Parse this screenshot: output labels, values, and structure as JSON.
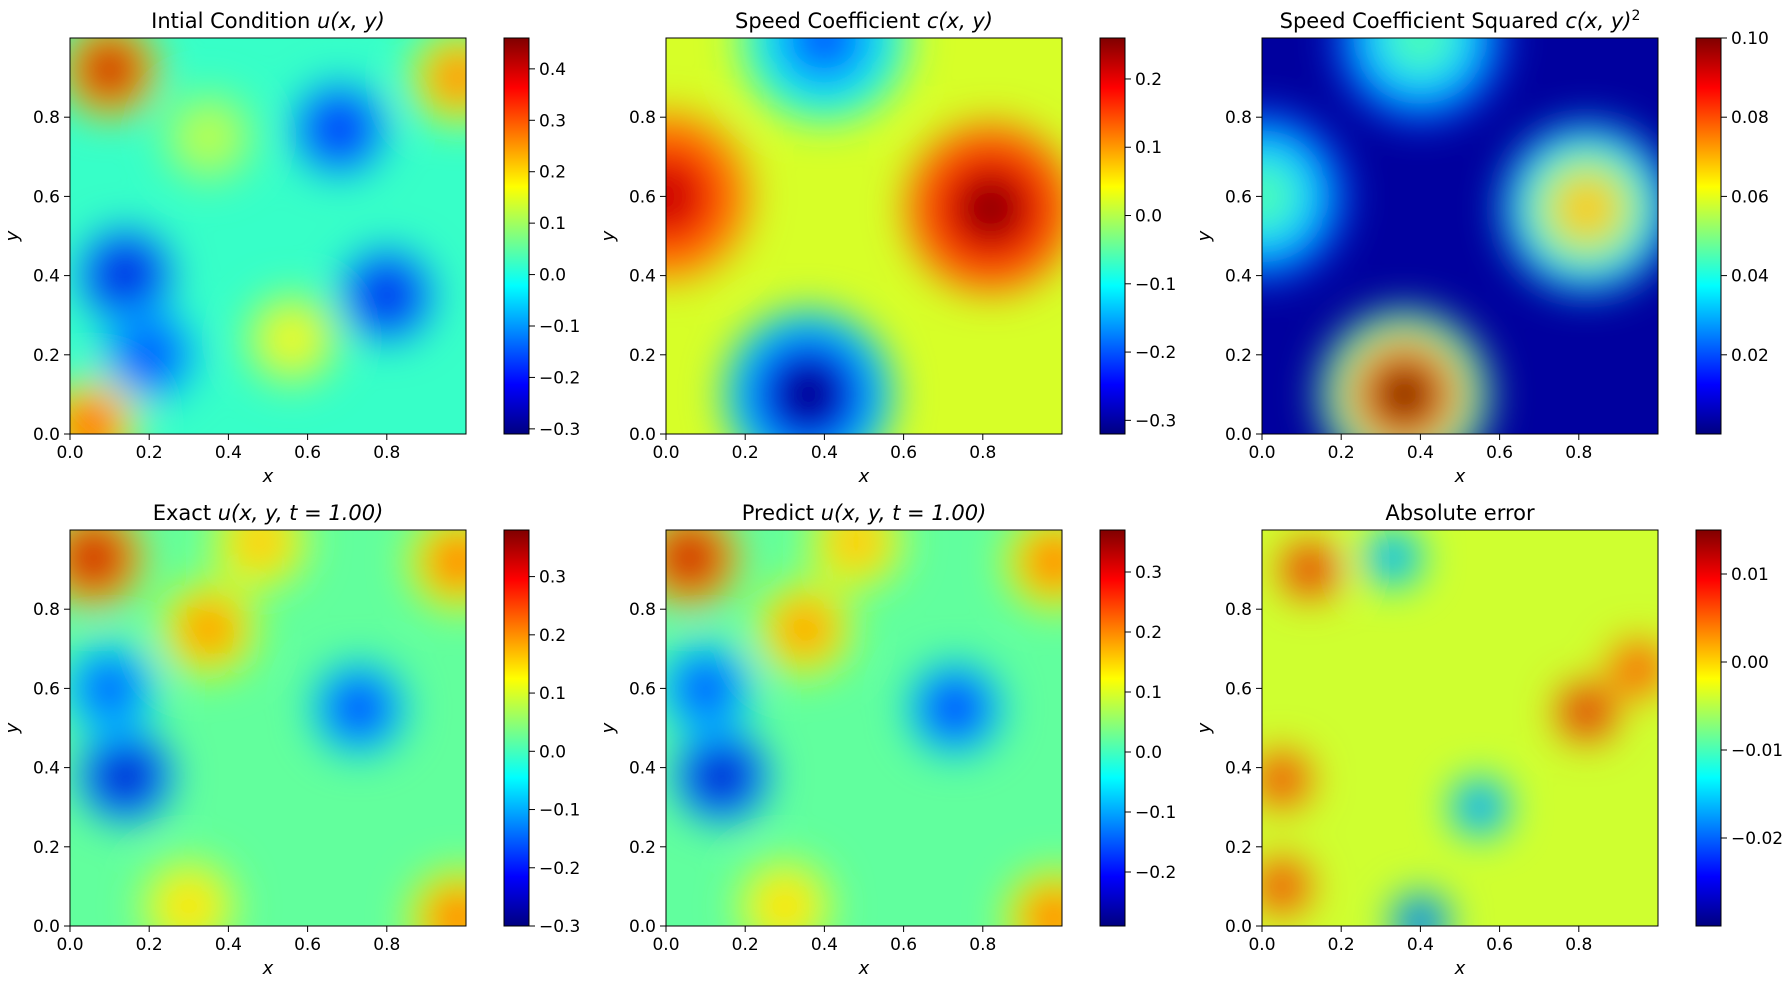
{
  "figure": {
    "panels": [
      {
        "title_prefix": "Intial Condition ",
        "title_math": "u(x, y)",
        "title_sup": "",
        "xlabel": "x",
        "ylabel": "y",
        "xticks": [
          "0.0",
          "0.2",
          "0.4",
          "0.6",
          "0.8"
        ],
        "yticks": [
          "0.0",
          "0.2",
          "0.4",
          "0.6",
          "0.8"
        ],
        "cbar_ticks": [
          "0.4",
          "0.3",
          "0.2",
          "0.1",
          "0.0",
          "−0.1",
          "−0.2",
          "−0.3"
        ]
      },
      {
        "title_prefix": "Speed Coefficient ",
        "title_math": "c(x, y)",
        "title_sup": "",
        "xlabel": "x",
        "ylabel": "y",
        "xticks": [
          "0.0",
          "0.2",
          "0.4",
          "0.6",
          "0.8"
        ],
        "yticks": [
          "0.0",
          "0.2",
          "0.4",
          "0.6",
          "0.8"
        ],
        "cbar_ticks": [
          "0.2",
          "0.1",
          "0.0",
          "−0.1",
          "−0.2",
          "−0.3"
        ]
      },
      {
        "title_prefix": "Speed Coefficient Squared ",
        "title_math": "c(x, y)",
        "title_sup": "2",
        "xlabel": "x",
        "ylabel": "y",
        "xticks": [
          "0.0",
          "0.2",
          "0.4",
          "0.6",
          "0.8"
        ],
        "yticks": [
          "0.0",
          "0.2",
          "0.4",
          "0.6",
          "0.8"
        ],
        "cbar_ticks": [
          "0.10",
          "0.08",
          "0.06",
          "0.04",
          "0.02"
        ]
      },
      {
        "title_prefix": "Exact ",
        "title_math": "u(x, y, t = 1.00)",
        "title_sup": "",
        "xlabel": "x",
        "ylabel": "y",
        "xticks": [
          "0.0",
          "0.2",
          "0.4",
          "0.6",
          "0.8"
        ],
        "yticks": [
          "0.0",
          "0.2",
          "0.4",
          "0.6",
          "0.8"
        ],
        "cbar_ticks": [
          "0.3",
          "0.2",
          "0.1",
          "0.0",
          "−0.1",
          "−0.2",
          "−0.3"
        ]
      },
      {
        "title_prefix": "Predict ",
        "title_math": "u(x, y, t = 1.00)",
        "title_sup": "",
        "xlabel": "x",
        "ylabel": "y",
        "xticks": [
          "0.0",
          "0.2",
          "0.4",
          "0.6",
          "0.8"
        ],
        "yticks": [
          "0.0",
          "0.2",
          "0.4",
          "0.6",
          "0.8"
        ],
        "cbar_ticks": [
          "0.3",
          "0.2",
          "0.1",
          "0.0",
          "−0.1",
          "−0.2"
        ]
      },
      {
        "title_prefix": "Absolute error",
        "title_math": "",
        "title_sup": "",
        "xlabel": "x",
        "ylabel": "y",
        "xticks": [
          "0.0",
          "0.2",
          "0.4",
          "0.6",
          "0.8"
        ],
        "yticks": [
          "0.0",
          "0.2",
          "0.4",
          "0.6",
          "0.8"
        ],
        "cbar_ticks": [
          "0.01",
          "0.00",
          "−0.01",
          "−0.02"
        ]
      }
    ]
  },
  "chart_data": [
    {
      "type": "heatmap",
      "title": "Intial Condition u(x, y)",
      "xlabel": "x",
      "ylabel": "y",
      "xlim": [
        0,
        1
      ],
      "ylim": [
        0,
        1
      ],
      "colormap": "jet",
      "colorbar_range": [
        -0.31,
        0.46
      ],
      "features": [
        {
          "x": 0.1,
          "y": 0.92,
          "value": 0.46
        },
        {
          "x": 0.68,
          "y": 0.77,
          "value": -0.22
        },
        {
          "x": 0.14,
          "y": 0.4,
          "value": -0.26
        },
        {
          "x": 0.8,
          "y": 0.35,
          "value": -0.24
        },
        {
          "x": 0.35,
          "y": 0.75,
          "value": 0.13
        },
        {
          "x": 0.56,
          "y": 0.24,
          "value": 0.18
        },
        {
          "x": 0.98,
          "y": 0.9,
          "value": 0.3
        },
        {
          "x": 0.05,
          "y": 0.02,
          "value": 0.35
        },
        {
          "x": 0.2,
          "y": 0.2,
          "value": -0.18
        }
      ]
    },
    {
      "type": "heatmap",
      "title": "Speed Coefficient c(x, y)",
      "xlabel": "x",
      "ylabel": "y",
      "xlim": [
        0,
        1
      ],
      "ylim": [
        0,
        1
      ],
      "colormap": "jet",
      "colorbar_range": [
        -0.32,
        0.26
      ],
      "features": [
        {
          "x": 0.82,
          "y": 0.57,
          "value": 0.26
        },
        {
          "x": 0.36,
          "y": 0.1,
          "value": -0.32
        },
        {
          "x": 0.4,
          "y": 1.0,
          "value": -0.2
        },
        {
          "x": 0.0,
          "y": 0.6,
          "value": 0.22
        }
      ]
    },
    {
      "type": "heatmap",
      "title": "Speed Coefficient Squared c(x, y)^2",
      "xlabel": "x",
      "ylabel": "y",
      "xlim": [
        0,
        1
      ],
      "ylim": [
        0,
        1
      ],
      "colormap": "jet",
      "colorbar_range": [
        0.0,
        0.1
      ],
      "features": [
        {
          "x": 0.36,
          "y": 0.1,
          "value": 0.1
        },
        {
          "x": 0.82,
          "y": 0.57,
          "value": 0.068
        },
        {
          "x": 0.4,
          "y": 1.0,
          "value": 0.045
        },
        {
          "x": 0.0,
          "y": 0.6,
          "value": 0.045
        }
      ]
    },
    {
      "type": "heatmap",
      "title": "Exact u(x, y, t = 1.00)",
      "xlabel": "x",
      "ylabel": "y",
      "xlim": [
        0,
        1
      ],
      "ylim": [
        0,
        1
      ],
      "colormap": "jet",
      "colorbar_range": [
        -0.3,
        0.38
      ],
      "features": [
        {
          "x": 0.06,
          "y": 0.93,
          "value": 0.38
        },
        {
          "x": 0.14,
          "y": 0.38,
          "value": -0.28
        },
        {
          "x": 0.73,
          "y": 0.55,
          "value": -0.2
        },
        {
          "x": 0.35,
          "y": 0.75,
          "value": 0.22
        },
        {
          "x": 0.3,
          "y": 0.05,
          "value": 0.16
        },
        {
          "x": 0.98,
          "y": 0.92,
          "value": 0.25
        },
        {
          "x": 0.98,
          "y": 0.02,
          "value": 0.25
        },
        {
          "x": 0.1,
          "y": 0.6,
          "value": -0.18
        },
        {
          "x": 0.48,
          "y": 0.97,
          "value": 0.18
        }
      ]
    },
    {
      "type": "heatmap",
      "title": "Predict u(x, y, t = 1.00)",
      "xlabel": "x",
      "ylabel": "y",
      "xlim": [
        0,
        1
      ],
      "ylim": [
        0,
        1
      ],
      "colormap": "jet",
      "colorbar_range": [
        -0.29,
        0.37
      ],
      "features": [
        {
          "x": 0.06,
          "y": 0.93,
          "value": 0.37
        },
        {
          "x": 0.14,
          "y": 0.38,
          "value": -0.27
        },
        {
          "x": 0.73,
          "y": 0.55,
          "value": -0.2
        },
        {
          "x": 0.35,
          "y": 0.75,
          "value": 0.21
        },
        {
          "x": 0.3,
          "y": 0.05,
          "value": 0.16
        },
        {
          "x": 0.98,
          "y": 0.92,
          "value": 0.24
        },
        {
          "x": 0.98,
          "y": 0.02,
          "value": 0.24
        },
        {
          "x": 0.1,
          "y": 0.6,
          "value": -0.18
        },
        {
          "x": 0.48,
          "y": 0.97,
          "value": 0.18
        }
      ]
    },
    {
      "type": "heatmap",
      "title": "Absolute error",
      "xlabel": "x",
      "ylabel": "y",
      "xlim": [
        0,
        1
      ],
      "ylim": [
        0,
        1
      ],
      "colormap": "jet",
      "colorbar_range": [
        -0.03,
        0.015
      ],
      "features": [
        {
          "x": 0.82,
          "y": 0.54,
          "value": 0.015
        },
        {
          "x": 0.4,
          "y": 0.01,
          "value": -0.028
        },
        {
          "x": 0.33,
          "y": 0.93,
          "value": -0.022
        },
        {
          "x": 0.12,
          "y": 0.9,
          "value": 0.014
        },
        {
          "x": 0.05,
          "y": 0.37,
          "value": 0.012
        },
        {
          "x": 0.55,
          "y": 0.3,
          "value": -0.024
        },
        {
          "x": 0.05,
          "y": 0.1,
          "value": 0.012
        },
        {
          "x": 0.95,
          "y": 0.65,
          "value": 0.01
        }
      ]
    }
  ]
}
